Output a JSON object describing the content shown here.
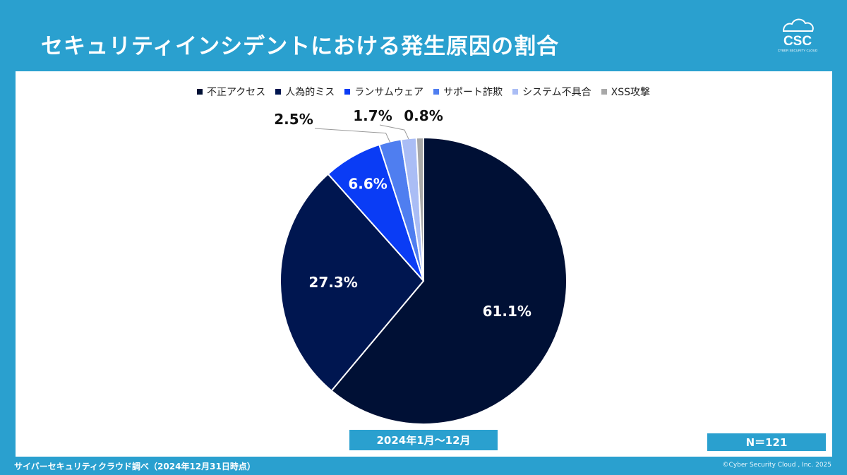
{
  "header": {
    "title": "セキュリティインシデントにおける発生原因の割合",
    "logo_text": "CSC",
    "logo_subtext": "CYBER SECURITY CLOUD"
  },
  "chart_data": {
    "type": "pie",
    "title": "セキュリティインシデントにおける発生原因の割合",
    "legend_position": "top",
    "slices": [
      {
        "label": "不正アクセス",
        "value": 61.1,
        "display": "61.1%",
        "color": "#001035"
      },
      {
        "label": "人為的ミス",
        "value": 27.3,
        "display": "27.3%",
        "color": "#001650"
      },
      {
        "label": "ランサムウェア",
        "value": 6.6,
        "display": "6.6%",
        "color": "#0a3cf5"
      },
      {
        "label": "サポート詐欺",
        "value": 2.5,
        "display": "2.5%",
        "color": "#4f7ef0"
      },
      {
        "label": "システム不具合",
        "value": 1.7,
        "display": "1.7%",
        "color": "#aabdf5"
      },
      {
        "label": "XSS攻撃",
        "value": 0.8,
        "display": "0.8%",
        "color": "#a8a8a8"
      }
    ]
  },
  "badges": {
    "period": "2024年1月～12月",
    "sample_size": "N＝121"
  },
  "footer": {
    "source": "サイバーセキュリティクラウド調べ（2024年12月31日時点）",
    "copyright": "©Cyber Security Cloud , Inc. 2025"
  }
}
